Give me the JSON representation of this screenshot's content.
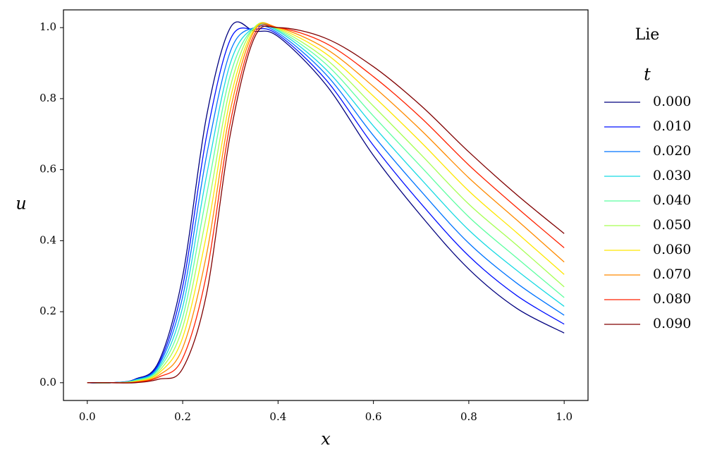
{
  "chart_data": {
    "type": "line",
    "title": "Lie",
    "legend_title": "t",
    "x_label": "x",
    "y_label": "u",
    "legend_position": "right",
    "x": [
      0,
      0.05,
      0.1,
      0.15,
      0.2,
      0.25,
      0.3,
      0.35,
      0.4,
      0.5,
      0.6,
      0.7,
      0.8,
      0.9,
      1.0
    ],
    "xlim": [
      -0.05,
      1.05
    ],
    "ylim": [
      -0.05,
      1.05
    ],
    "xticks": [
      {
        "value": 0,
        "label": "0.0"
      },
      0.2,
      0.4,
      0.6,
      0.8,
      {
        "value": 1,
        "label": "1.0"
      }
    ],
    "yticks": [
      {
        "value": 0,
        "label": "0.0"
      },
      0.2,
      0.4,
      0.6,
      0.8,
      {
        "value": 1,
        "label": "1.0"
      }
    ],
    "series": [
      {
        "name": "0.000",
        "color": "#00007f",
        "values": [
          0,
          0,
          0.01,
          0.06,
          0.3,
          0.75,
          1.0,
          0.99,
          0.975,
          0.84,
          0.64,
          0.47,
          0.32,
          0.21,
          0.14
        ]
      },
      {
        "name": "0.010",
        "color": "#0010ff",
        "values": [
          0,
          0,
          0.009,
          0.054,
          0.271,
          0.694,
          0.967,
          0.995,
          0.98,
          0.854,
          0.668,
          0.504,
          0.357,
          0.246,
          0.165
        ]
      },
      {
        "name": "0.020",
        "color": "#0074ff",
        "values": [
          0,
          0,
          0.008,
          0.049,
          0.242,
          0.639,
          0.933,
          1.0,
          0.985,
          0.869,
          0.696,
          0.539,
          0.393,
          0.281,
          0.19
        ]
      },
      {
        "name": "0.030",
        "color": "#16d9e3",
        "values": [
          0,
          0,
          0.007,
          0.043,
          0.213,
          0.583,
          0.9,
          1.0,
          0.99,
          0.883,
          0.723,
          0.573,
          0.43,
          0.317,
          0.215
        ]
      },
      {
        "name": "0.040",
        "color": "#5cffa0",
        "values": [
          0,
          0,
          0.006,
          0.038,
          0.184,
          0.528,
          0.867,
          1.0,
          0.993,
          0.898,
          0.751,
          0.608,
          0.467,
          0.352,
          0.24
        ]
      },
      {
        "name": "0.050",
        "color": "#a6ff52",
        "values": [
          0,
          0,
          0.004,
          0.032,
          0.156,
          0.472,
          0.833,
          1.0,
          0.996,
          0.912,
          0.779,
          0.642,
          0.503,
          0.388,
          0.27
        ]
      },
      {
        "name": "0.060",
        "color": "#ffe600",
        "values": [
          0,
          0,
          0.003,
          0.027,
          0.127,
          0.417,
          0.8,
          0.995,
          0.998,
          0.927,
          0.807,
          0.677,
          0.54,
          0.423,
          0.305
        ]
      },
      {
        "name": "0.070",
        "color": "#ff8a00",
        "values": [
          0,
          0,
          0.002,
          0.021,
          0.098,
          0.361,
          0.767,
          0.99,
          1.0,
          0.941,
          0.834,
          0.711,
          0.577,
          0.459,
          0.34
        ]
      },
      {
        "name": "0.080",
        "color": "#ff2200",
        "values": [
          0,
          0,
          0.001,
          0.016,
          0.069,
          0.306,
          0.733,
          0.98,
          1.0,
          0.956,
          0.862,
          0.746,
          0.613,
          0.494,
          0.38
        ]
      },
      {
        "name": "0.090",
        "color": "#800000",
        "values": [
          0,
          0,
          0,
          0.01,
          0.04,
          0.25,
          0.7,
          0.97,
          1.0,
          0.97,
          0.89,
          0.78,
          0.65,
          0.53,
          0.42
        ]
      }
    ]
  }
}
